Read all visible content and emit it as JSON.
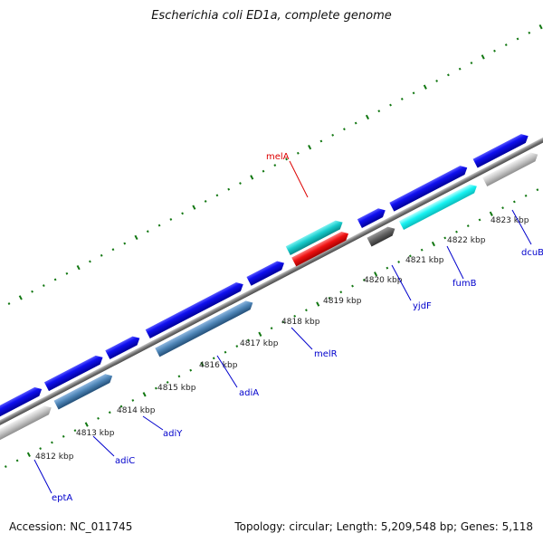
{
  "title": "Escherichia coli ED1a, complete genome",
  "footer": {
    "accession": "Accession: NC_011745",
    "summary": "Topology: circular; Length: 5,209,548 bp; Genes: 5,118"
  },
  "colors": {
    "backbone": "#7a7a7a",
    "tick_green": "#117711",
    "label_blue": "#0000cc",
    "label_red": "#dd0000",
    "gene_blue": "#1010e8",
    "gene_steel": "#4f86b8",
    "gene_cyan": "#18cccc",
    "gene_cyan_bright": "#17f2f2",
    "gene_red": "#ee1111",
    "gene_grey": "#b8b8b8",
    "gene_dark": "#606060"
  },
  "scale_labels": [
    "4812 kbp",
    "4813 kbp",
    "4814 kbp",
    "4815 kbp",
    "4816 kbp",
    "4817 kbp",
    "4818 kbp",
    "4819 kbp",
    "4820 kbp",
    "4821 kbp",
    "4822 kbp",
    "4823 kbp"
  ],
  "gene_labels": [
    {
      "name": "eptA",
      "color": "blue"
    },
    {
      "name": "adiC",
      "color": "blue"
    },
    {
      "name": "adiY",
      "color": "blue"
    },
    {
      "name": "adiA",
      "color": "blue"
    },
    {
      "name": "melR",
      "color": "blue"
    },
    {
      "name": "melA",
      "color": "red"
    },
    {
      "name": "yjdF",
      "color": "blue"
    },
    {
      "name": "fumB",
      "color": "blue"
    },
    {
      "name": "dcuB",
      "color": "blue"
    }
  ]
}
